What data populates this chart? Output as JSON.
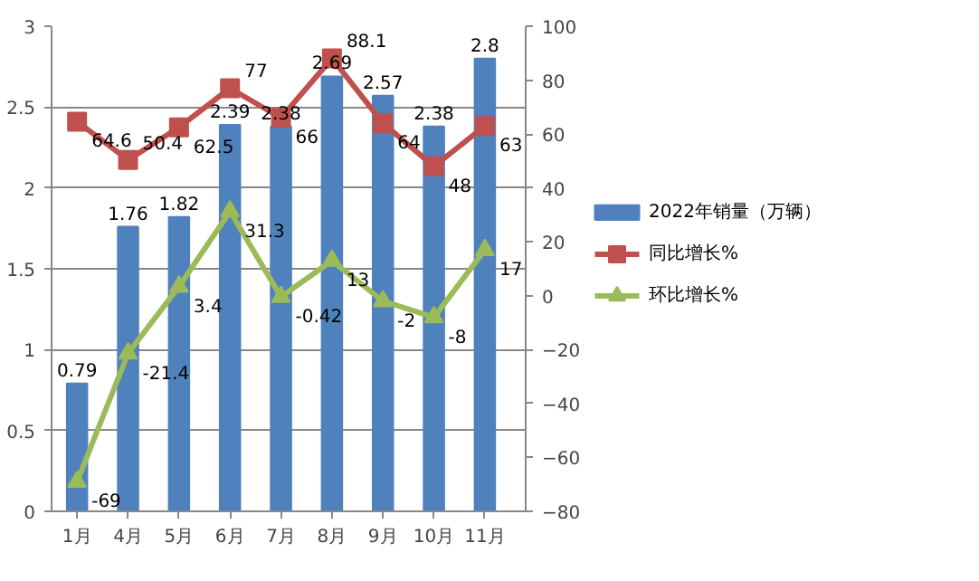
{
  "chart_data": {
    "type": "bar",
    "categories": [
      "1月",
      "4月",
      "5月",
      "6月",
      "7月",
      "8月",
      "9月",
      "10月",
      "11月"
    ],
    "series": [
      {
        "name": "2022年销量（万辆）",
        "color": "#4f81bd",
        "values": [
          0.79,
          1.76,
          1.82,
          2.39,
          2.38,
          2.69,
          2.57,
          2.38,
          2.8
        ]
      },
      {
        "name": "同比增长%",
        "type": "line",
        "axis": "y2",
        "marker": "square",
        "color": "#c0504d",
        "values": [
          64.6,
          50.4,
          62.5,
          77,
          66,
          88.1,
          64,
          48,
          63
        ]
      },
      {
        "name": "环比增长%",
        "type": "line",
        "axis": "y2",
        "marker": "triangle",
        "color": "#9bbb59",
        "values": [
          -69,
          -21.4,
          3.4,
          31.3,
          -0.42,
          13,
          -2,
          -8,
          17
        ]
      }
    ],
    "ylim": [
      0,
      3
    ],
    "yticks": [
      0,
      0.5,
      1,
      1.5,
      2,
      2.5,
      3
    ],
    "y2lim": [
      -80,
      100
    ],
    "y2ticks": [
      -80,
      -60,
      -40,
      -20,
      0,
      20,
      40,
      60,
      80,
      100
    ],
    "grid": "y",
    "legend": "right",
    "data_labels": true
  }
}
